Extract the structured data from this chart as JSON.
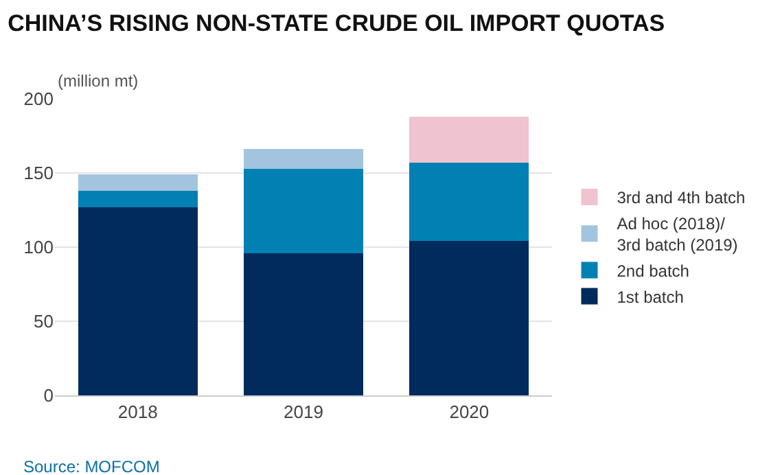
{
  "chart_data": {
    "type": "bar",
    "title": "CHINA’S RISING NON-STATE CRUDE OIL IMPORT QUOTAS",
    "ylabel": "(million mt)",
    "categories": [
      "2018",
      "2019",
      "2020"
    ],
    "series": [
      {
        "name": "1st batch",
        "color": "#002b5c",
        "values": [
          127,
          96,
          104
        ]
      },
      {
        "name": "2nd batch",
        "color": "#0080b3",
        "values": [
          11,
          57,
          53
        ]
      },
      {
        "name": "Ad hoc (2018)/\n3rd batch (2019)",
        "color": "#a3c4df",
        "values": [
          11,
          13,
          null
        ]
      },
      {
        "name": "3rd and 4th batch",
        "color": "#efc3cf",
        "values": [
          null,
          null,
          31
        ]
      }
    ],
    "stacked": true,
    "ylim": [
      0,
      200
    ],
    "yticks": [
      0,
      50,
      100,
      150,
      200
    ],
    "grid": "y",
    "legend": "right",
    "annotations": [
      "Source: MOFCOM"
    ]
  }
}
